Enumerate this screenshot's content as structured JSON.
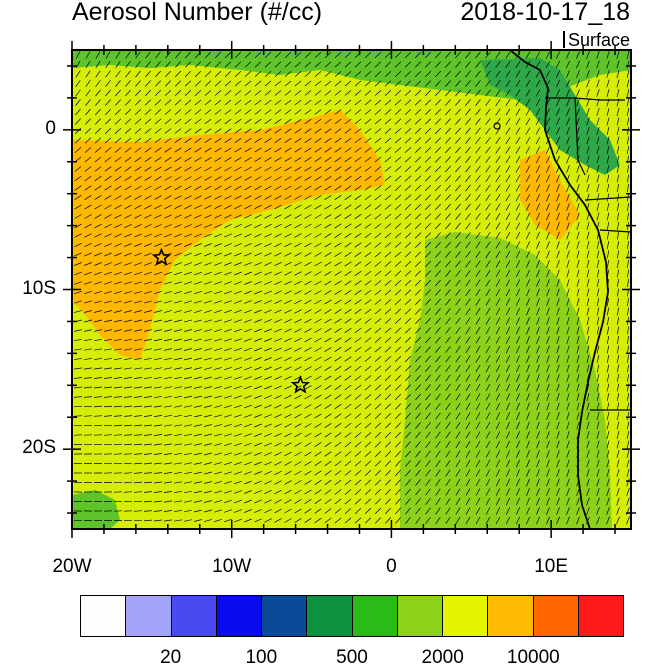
{
  "title": "Aerosol Number (#/cc)",
  "datetime": "2018-10-17_18",
  "level": "Surface",
  "map": {
    "lon_range": [
      -20,
      15
    ],
    "lat_range": [
      -25,
      5
    ],
    "x_ticks": [
      {
        "lon": -20,
        "label": "20W"
      },
      {
        "lon": -10,
        "label": "10W"
      },
      {
        "lon": 0,
        "label": "0"
      },
      {
        "lon": 10,
        "label": "10E"
      }
    ],
    "y_ticks": [
      {
        "lat": 0,
        "label": "0"
      },
      {
        "lat": -10,
        "label": "10S"
      },
      {
        "lat": -20,
        "label": "20S"
      }
    ],
    "markers": [
      {
        "lon": -14.4,
        "lat": -8.0,
        "symbol": "star"
      },
      {
        "lon": -5.7,
        "lat": -16.0,
        "symbol": "star"
      }
    ],
    "fill_colors": {
      "dark_green": "#2fa84a",
      "green": "#5fc42a",
      "yellow_green": "#8ed11a",
      "yellow": "#d6ee07",
      "orange": "#ffb800"
    },
    "coastline_color": "#000000",
    "wind_barb_color": "#000000"
  },
  "colorbar": {
    "colors": [
      "#fefefe",
      "#a3a3f8",
      "#4a4af2",
      "#0b0bef",
      "#0a4b99",
      "#0c9140",
      "#2bbb16",
      "#8ed11a",
      "#e3f500",
      "#ffbb00",
      "#ff6500",
      "#ff1a1a"
    ],
    "labels": [
      {
        "after_box": 2,
        "text": "20"
      },
      {
        "after_box": 4,
        "text": "100"
      },
      {
        "after_box": 6,
        "text": "500"
      },
      {
        "after_box": 8,
        "text": "2000"
      },
      {
        "after_box": 10,
        "text": "10000"
      }
    ]
  }
}
